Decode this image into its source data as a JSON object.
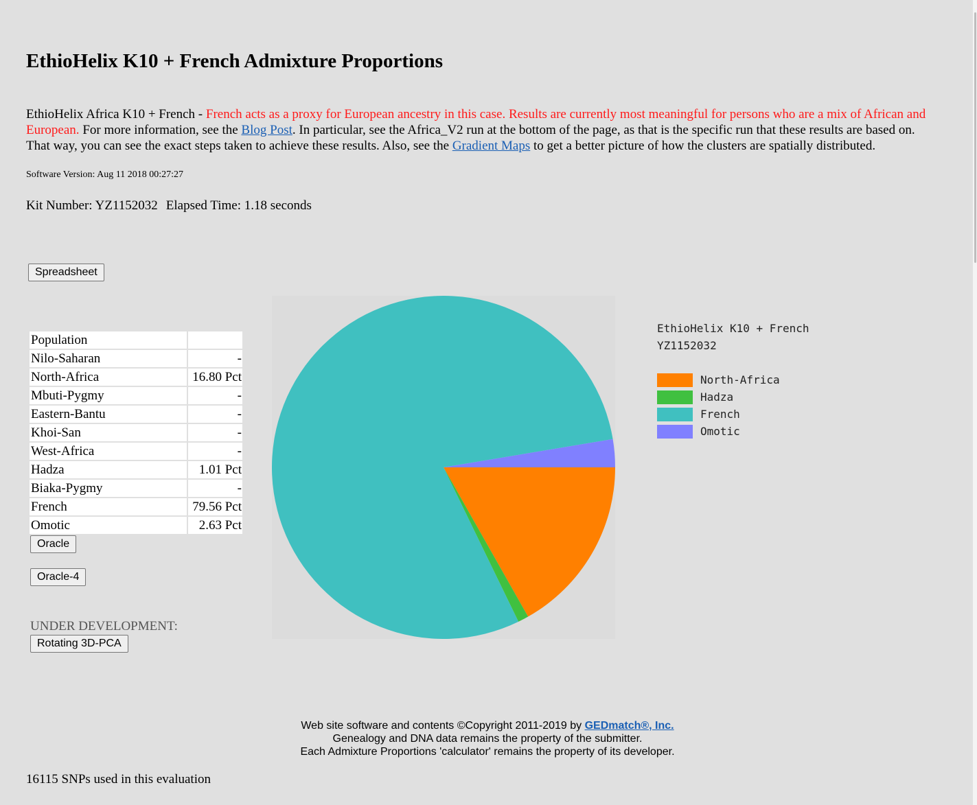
{
  "title": "EthioHelix K10 + French Admixture Proportions",
  "intro": {
    "lead": "EthioHelix Africa K10 + French - ",
    "red": "French acts as a proxy for European ancestry in this case. Results are currently most meaningful for persons who are a mix of African and European.",
    "text1": " For more information, see the ",
    "link1": "Blog Post",
    "text2": ". In particular, see the Africa_V2 run at the bottom of the page, as that is the specific run that these results are based on. That way, you can see the exact steps taken to achieve these results. Also, see the ",
    "link2": "Gradient Maps",
    "text3": " to get a better picture of how the clusters are spatially distributed."
  },
  "version": "Software Version: Aug 11 2018 00:27:27",
  "kit": {
    "number": "Kit Number: YZ1152032",
    "elapsed": "Elapsed Time: 1.18 seconds"
  },
  "buttons": {
    "spreadsheet": "Spreadsheet",
    "oracle": "Oracle",
    "oracle4": "Oracle-4",
    "pca": "Rotating 3D-PCA"
  },
  "table": {
    "header": [
      "Population",
      ""
    ],
    "rows": [
      [
        "Nilo-Saharan",
        "-"
      ],
      [
        "North-Africa",
        "16.80 Pct"
      ],
      [
        "Mbuti-Pygmy",
        "-"
      ],
      [
        "Eastern-Bantu",
        "-"
      ],
      [
        "Khoi-San",
        "-"
      ],
      [
        "West-Africa",
        "-"
      ],
      [
        "Hadza",
        "1.01 Pct"
      ],
      [
        "Biaka-Pygmy",
        "-"
      ],
      [
        "French",
        "79.56 Pct"
      ],
      [
        "Omotic",
        "2.63 Pct"
      ]
    ]
  },
  "under_development": "UNDER DEVELOPMENT:",
  "chart_data": {
    "type": "pie",
    "title": "EthioHelix K10 + French",
    "subtitle": "YZ1152032",
    "categories": [
      "North-Africa",
      "Hadza",
      "French",
      "Omotic"
    ],
    "values": [
      16.8,
      1.01,
      79.56,
      2.63
    ],
    "colors": [
      "#ff8000",
      "#40c040",
      "#40c0c0",
      "#8080ff"
    ],
    "legend_position": "right"
  },
  "footer": {
    "line1_pre": "Web site software and contents ©Copyright 2011-2019 by ",
    "line1_link": "GEDmatch®, Inc.",
    "line2": "Genealogy and DNA data remains the property of the submitter.",
    "line3": "Each Admixture Proportions 'calculator' remains the property of its developer."
  },
  "snps": "16115 SNPs used in this evaluation"
}
